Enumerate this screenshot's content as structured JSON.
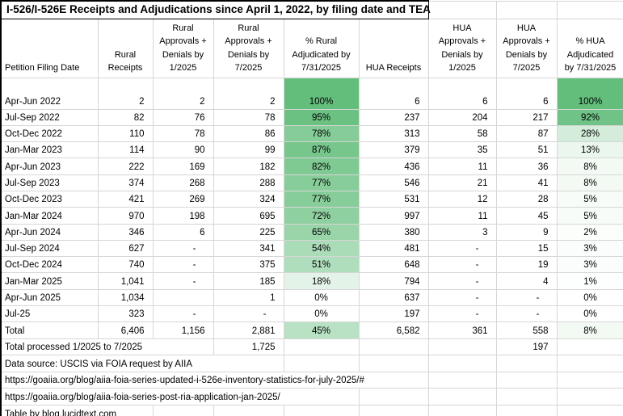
{
  "title": "I-526/I-526E Receipts and Adjudications since April 1, 2022, by filing date and TEA",
  "columns": [
    {
      "label": "Petition Filing Date"
    },
    {
      "label": "Rural\nReceipts"
    },
    {
      "label": "Rural\nApprovals +\nDenials by\n1/2025"
    },
    {
      "label": "Rural\nApprovals +\nDenials by\n7/2025"
    },
    {
      "label": "% Rural\nAdjudicated by\n7/31/2025"
    },
    {
      "label": "HUA Receipts"
    },
    {
      "label": "HUA\nApprovals +\nDenials by\n1/2025"
    },
    {
      "label": "HUA\nApprovals +\nDenials by\n7/2025"
    },
    {
      "label": "% HUA\nAdjudicated\nby 7/31/2025"
    }
  ],
  "rows": [
    {
      "filing_date": "Apr-Jun 2022",
      "rural_receipts": "2",
      "rural_adj_by_1_2025": "2",
      "rural_adj_by_7_2025": "2",
      "pct_rural": 100,
      "hua_receipts": "6",
      "hua_adj_by_1_2025": "6",
      "hua_adj_by_7_2025": "6",
      "pct_hua": 100
    },
    {
      "filing_date": "Jul-Sep 2022",
      "rural_receipts": "82",
      "rural_adj_by_1_2025": "76",
      "rural_adj_by_7_2025": "78",
      "pct_rural": 95,
      "hua_receipts": "237",
      "hua_adj_by_1_2025": "204",
      "hua_adj_by_7_2025": "217",
      "pct_hua": 92
    },
    {
      "filing_date": "Oct-Dec 2022",
      "rural_receipts": "110",
      "rural_adj_by_1_2025": "78",
      "rural_adj_by_7_2025": "86",
      "pct_rural": 78,
      "hua_receipts": "313",
      "hua_adj_by_1_2025": "58",
      "hua_adj_by_7_2025": "87",
      "pct_hua": 28
    },
    {
      "filing_date": "Jan-Mar 2023",
      "rural_receipts": "114",
      "rural_adj_by_1_2025": "90",
      "rural_adj_by_7_2025": "99",
      "pct_rural": 87,
      "hua_receipts": "379",
      "hua_adj_by_1_2025": "35",
      "hua_adj_by_7_2025": "51",
      "pct_hua": 13
    },
    {
      "filing_date": "Apr-Jun 2023",
      "rural_receipts": "222",
      "rural_adj_by_1_2025": "169",
      "rural_adj_by_7_2025": "182",
      "pct_rural": 82,
      "hua_receipts": "436",
      "hua_adj_by_1_2025": "11",
      "hua_adj_by_7_2025": "36",
      "pct_hua": 8
    },
    {
      "filing_date": "Jul-Sep 2023",
      "rural_receipts": "374",
      "rural_adj_by_1_2025": "268",
      "rural_adj_by_7_2025": "288",
      "pct_rural": 77,
      "hua_receipts": "546",
      "hua_adj_by_1_2025": "21",
      "hua_adj_by_7_2025": "41",
      "pct_hua": 8
    },
    {
      "filing_date": "Oct-Dec 2023",
      "rural_receipts": "421",
      "rural_adj_by_1_2025": "269",
      "rural_adj_by_7_2025": "324",
      "pct_rural": 77,
      "hua_receipts": "531",
      "hua_adj_by_1_2025": "12",
      "hua_adj_by_7_2025": "28",
      "pct_hua": 5
    },
    {
      "filing_date": "Jan-Mar 2024",
      "rural_receipts": "970",
      "rural_adj_by_1_2025": "198",
      "rural_adj_by_7_2025": "695",
      "pct_rural": 72,
      "hua_receipts": "997",
      "hua_adj_by_1_2025": "11",
      "hua_adj_by_7_2025": "45",
      "pct_hua": 5
    },
    {
      "filing_date": "Apr-Jun 2024",
      "rural_receipts": "346",
      "rural_adj_by_1_2025": "6",
      "rural_adj_by_7_2025": "225",
      "pct_rural": 65,
      "hua_receipts": "380",
      "hua_adj_by_1_2025": "3",
      "hua_adj_by_7_2025": "9",
      "pct_hua": 2
    },
    {
      "filing_date": "Jul-Sep 2024",
      "rural_receipts": "627",
      "rural_adj_by_1_2025": "-",
      "rural_adj_by_7_2025": "341",
      "pct_rural": 54,
      "hua_receipts": "481",
      "hua_adj_by_1_2025": "-",
      "hua_adj_by_7_2025": "15",
      "pct_hua": 3
    },
    {
      "filing_date": "Oct-Dec 2024",
      "rural_receipts": "740",
      "rural_adj_by_1_2025": "-",
      "rural_adj_by_7_2025": "375",
      "pct_rural": 51,
      "hua_receipts": "648",
      "hua_adj_by_1_2025": "-",
      "hua_adj_by_7_2025": "19",
      "pct_hua": 3
    },
    {
      "filing_date": "Jan-Mar 2025",
      "rural_receipts": "1,041",
      "rural_adj_by_1_2025": "-",
      "rural_adj_by_7_2025": "185",
      "pct_rural": 18,
      "hua_receipts": "794",
      "hua_adj_by_1_2025": "-",
      "hua_adj_by_7_2025": "4",
      "pct_hua": 1
    },
    {
      "filing_date": "Apr-Jun 2025",
      "rural_receipts": "1,034",
      "rural_adj_by_1_2025": "",
      "rural_adj_by_7_2025": "1",
      "pct_rural": 0,
      "hua_receipts": "637",
      "hua_adj_by_1_2025": "-",
      "hua_adj_by_7_2025": "-",
      "pct_hua": 0
    },
    {
      "filing_date": "Jul-25",
      "rural_receipts": "323",
      "rural_adj_by_1_2025": "-",
      "rural_adj_by_7_2025": "-",
      "pct_rural": 0,
      "hua_receipts": "197",
      "hua_adj_by_1_2025": "-",
      "hua_adj_by_7_2025": "-",
      "pct_hua": 0
    },
    {
      "filing_date": "Total",
      "rural_receipts": "6,406",
      "rural_adj_by_1_2025": "1,156",
      "rural_adj_by_7_2025": "2,881",
      "pct_rural": 45,
      "hua_receipts": "6,582",
      "hua_adj_by_1_2025": "361",
      "hua_adj_by_7_2025": "558",
      "pct_hua": 8,
      "is_total": true
    }
  ],
  "footer": {
    "total_processed_label": "Total processed 1/2025 to 7/2025",
    "total_processed_rural": "1,725",
    "total_processed_hua": "197",
    "data_source": "Data source: USCIS via FOIA request by AIIA",
    "link_1": "https://goaiia.org/blog/aiia-foia-series-updated-i-526e-inventory-statistics-for-july-2025/#",
    "link_2": "https://goaiia.org/blog/aiia-foia-series-post-ria-application-jan-2025/",
    "credit": "Table by blog.lucidtext.com"
  },
  "colors": {
    "percent_scale_max": "#63be7b",
    "percent_scale_min": "#ffffff",
    "gridline": "#d6d6d6",
    "outer_border": "#000000",
    "text": "#000000"
  }
}
